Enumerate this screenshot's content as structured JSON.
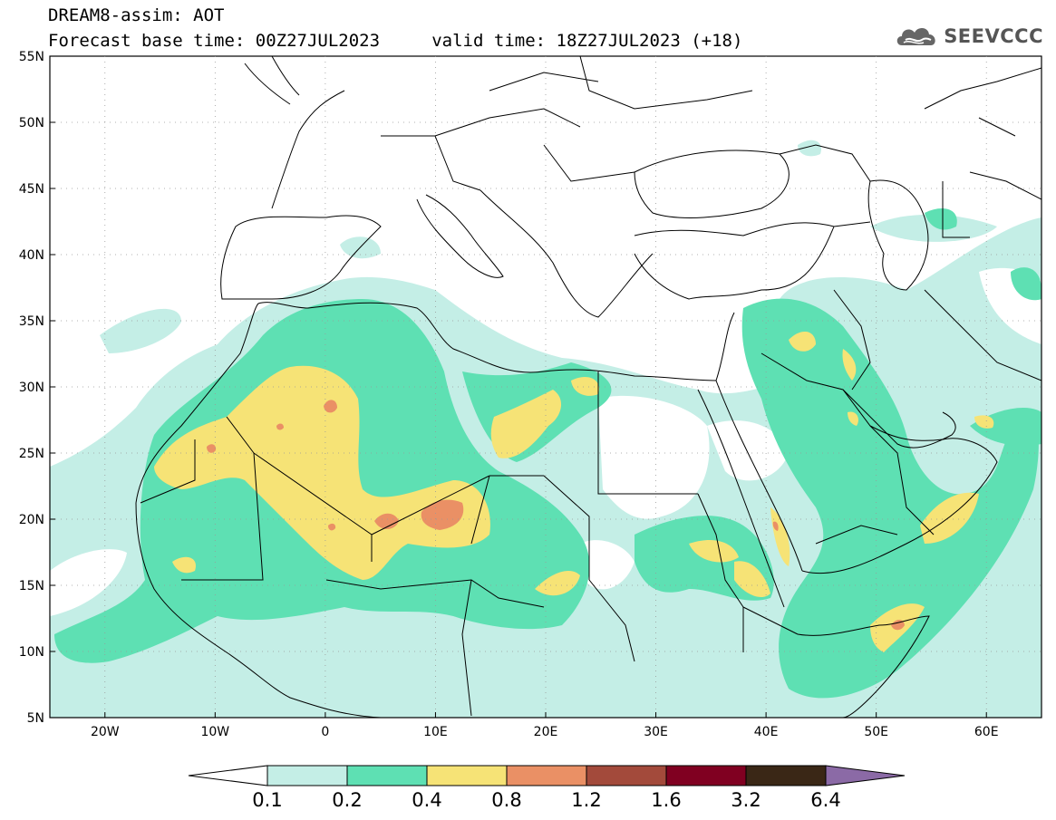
{
  "title": {
    "line1": "DREAM8-assim: AOT",
    "line2": "Forecast base time: 00Z27JUL2023     valid time: 18Z27JUL2023 (+18)"
  },
  "logo": {
    "text": "SEEVCCC",
    "icon": "cloud-logo-icon"
  },
  "map": {
    "lon_range": [
      -25,
      65
    ],
    "lat_range": [
      5,
      55
    ],
    "lat_ticks": [
      {
        "v": 55,
        "label": "55N"
      },
      {
        "v": 50,
        "label": "50N"
      },
      {
        "v": 45,
        "label": "45N"
      },
      {
        "v": 40,
        "label": "40N"
      },
      {
        "v": 35,
        "label": "35N"
      },
      {
        "v": 30,
        "label": "30N"
      },
      {
        "v": 25,
        "label": "25N"
      },
      {
        "v": 20,
        "label": "20N"
      },
      {
        "v": 15,
        "label": "15N"
      },
      {
        "v": 10,
        "label": "10N"
      },
      {
        "v": 5,
        "label": "5N"
      }
    ],
    "lon_ticks": [
      {
        "v": -20,
        "label": "20W"
      },
      {
        "v": -10,
        "label": "10W"
      },
      {
        "v": 0,
        "label": "0"
      },
      {
        "v": 10,
        "label": "10E"
      },
      {
        "v": 20,
        "label": "20E"
      },
      {
        "v": 30,
        "label": "30E"
      },
      {
        "v": 40,
        "label": "40E"
      },
      {
        "v": 50,
        "label": "50E"
      },
      {
        "v": 60,
        "label": "60E"
      }
    ],
    "grid": "dotted"
  },
  "colorbar": {
    "levels": [
      "0.1",
      "0.2",
      "0.4",
      "0.8",
      "1.2",
      "1.6",
      "3.2",
      "6.4"
    ],
    "colors": [
      "#ffffff",
      "#c4eee6",
      "#5ee0b3",
      "#f6e376",
      "#ea9065",
      "#a34a3b",
      "#800021",
      "#3a2716",
      "#8b6aa6"
    ]
  }
}
